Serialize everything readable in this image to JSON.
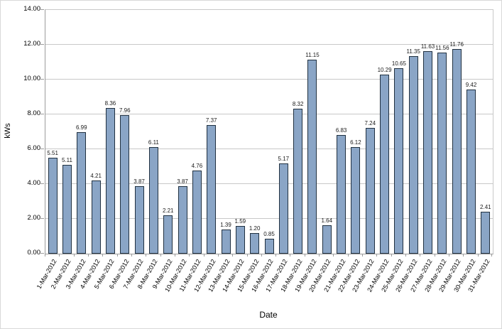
{
  "chart_data": {
    "type": "bar",
    "title": "",
    "xlabel": "Date",
    "ylabel": "kWs",
    "ylim": [
      0,
      14
    ],
    "ytick_step": 2,
    "ytick_labels": [
      "0.00",
      "2.00",
      "4.00",
      "6.00",
      "8.00",
      "10.00",
      "12.00",
      "14.00"
    ],
    "grid": "horizontal",
    "legend": "none",
    "bar_color": "#8aa5c6",
    "bar_border_color": "#203040",
    "gridline_color": "#c8c8c8",
    "axis_color": "#9c9c9c",
    "categories": [
      "1-Mar-2012",
      "2-Mar-2012",
      "3-Mar-2012",
      "4-Mar-2012",
      "5-Mar-2012",
      "6-Mar-2012",
      "7-Mar-2012",
      "8-Mar-2012",
      "9-Mar-2012",
      "10-Mar-2012",
      "11-Mar-2012",
      "12-Mar-2012",
      "13-Mar-2012",
      "14-Mar-2012",
      "15-Mar-2012",
      "16-Mar-2012",
      "17-Mar-2012",
      "18-Mar-2012",
      "19-Mar-2012",
      "20-Mar-2012",
      "21-Mar-2012",
      "22-Mar-2012",
      "23-Mar-2012",
      "24-Mar-2012",
      "25-Mar-2012",
      "26-Mar-2012",
      "27-Mar-2012",
      "28-Mar-2012",
      "29-Mar-2012",
      "30-Mar-2012",
      "31-Mar-2012"
    ],
    "values": [
      5.51,
      5.11,
      6.99,
      4.21,
      8.36,
      7.96,
      3.87,
      6.11,
      2.21,
      3.87,
      4.76,
      7.37,
      1.39,
      1.59,
      1.2,
      0.85,
      5.17,
      8.32,
      11.15,
      1.64,
      6.83,
      6.12,
      7.24,
      10.29,
      10.65,
      11.35,
      11.63,
      11.56,
      11.76,
      9.42,
      2.41
    ]
  }
}
